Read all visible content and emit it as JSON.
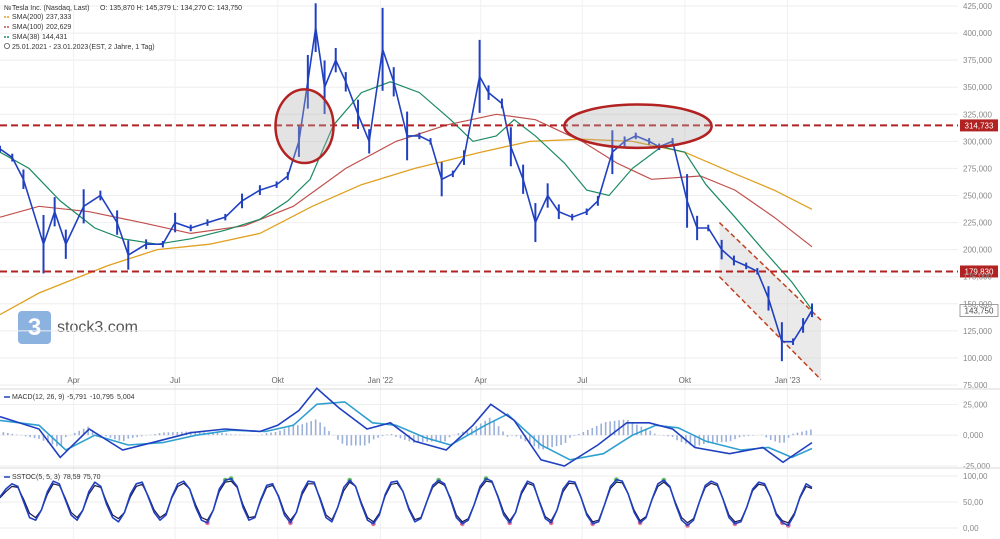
{
  "chart_data": [
    {
      "type": "line",
      "panel": "price",
      "legend": {
        "instrument": "Tesla Inc. (Nasdaq, Last)",
        "ohlc": "O: 135,870  H: 145,379  L: 134,270  C: 143,750",
        "sma200": {
          "label": "SMA(200)",
          "value": "237,333",
          "color": "#e0a020"
        },
        "sma100": {
          "label": "SMA(100)",
          "value": "202,629",
          "color": "#c0504d"
        },
        "sma38": {
          "label": "SMA(38)",
          "value": "144,431",
          "color": "#1a8a60"
        },
        "range": "25.01.2021 - 23.01.2023",
        "range_note": "(EST, 2 Jahre, 1 Tag)"
      },
      "y_axis": {
        "min": 75,
        "max": 425,
        "ticks": [
          75,
          100,
          125,
          150,
          175,
          200,
          225,
          250,
          275,
          300,
          325,
          350,
          375,
          400,
          425
        ],
        "tick_labels": [
          "75,000",
          "100,000",
          "125,000",
          "150,000",
          "175,000",
          "200,000",
          "225,000",
          "250,000",
          "275,000",
          "300,000",
          "325,000",
          "350,000",
          "375,000",
          "400,000",
          "425,000"
        ]
      },
      "x_labels": [
        {
          "label": "Apr",
          "date": "2021-04-01"
        },
        {
          "label": "Jul",
          "date": "2021-07-01"
        },
        {
          "label": "Okt",
          "date": "2021-10-01"
        },
        {
          "label": "Jan '22",
          "date": "2022-01-01"
        },
        {
          "label": "Apr",
          "date": "2022-04-01"
        },
        {
          "label": "Jul",
          "date": "2022-07-01"
        },
        {
          "label": "Okt",
          "date": "2022-10-01"
        },
        {
          "label": "Jan '23",
          "date": "2023-01-01"
        }
      ],
      "price_series": {
        "color": "#2040c0",
        "points": [
          [
            "2021-01-25",
            293
          ],
          [
            "2021-02-05",
            285
          ],
          [
            "2021-02-15",
            265
          ],
          [
            "2021-03-05",
            205
          ],
          [
            "2021-03-15",
            235
          ],
          [
            "2021-03-25",
            205
          ],
          [
            "2021-04-10",
            240
          ],
          [
            "2021-04-25",
            250
          ],
          [
            "2021-05-10",
            225
          ],
          [
            "2021-05-20",
            195
          ],
          [
            "2021-06-05",
            205
          ],
          [
            "2021-06-20",
            205
          ],
          [
            "2021-07-01",
            225
          ],
          [
            "2021-07-15",
            220
          ],
          [
            "2021-07-30",
            225
          ],
          [
            "2021-08-15",
            230
          ],
          [
            "2021-08-30",
            245
          ],
          [
            "2021-09-15",
            255
          ],
          [
            "2021-09-30",
            260
          ],
          [
            "2021-10-10",
            268
          ],
          [
            "2021-10-20",
            300
          ],
          [
            "2021-10-28",
            355
          ],
          [
            "2021-11-04",
            405
          ],
          [
            "2021-11-12",
            350
          ],
          [
            "2021-11-22",
            375
          ],
          [
            "2021-12-01",
            355
          ],
          [
            "2021-12-12",
            325
          ],
          [
            "2021-12-22",
            300
          ],
          [
            "2022-01-03",
            385
          ],
          [
            "2022-01-13",
            355
          ],
          [
            "2022-01-25",
            305
          ],
          [
            "2022-02-05",
            305
          ],
          [
            "2022-02-15",
            300
          ],
          [
            "2022-02-25",
            265
          ],
          [
            "2022-03-07",
            270
          ],
          [
            "2022-03-17",
            285
          ],
          [
            "2022-03-31",
            360
          ],
          [
            "2022-04-08",
            345
          ],
          [
            "2022-04-20",
            335
          ],
          [
            "2022-04-28",
            295
          ],
          [
            "2022-05-09",
            265
          ],
          [
            "2022-05-20",
            225
          ],
          [
            "2022-05-31",
            250
          ],
          [
            "2022-06-10",
            235
          ],
          [
            "2022-06-22",
            230
          ],
          [
            "2022-07-05",
            235
          ],
          [
            "2022-07-15",
            245
          ],
          [
            "2022-07-28",
            290
          ],
          [
            "2022-08-08",
            300
          ],
          [
            "2022-08-18",
            305
          ],
          [
            "2022-08-30",
            300
          ],
          [
            "2022-09-08",
            295
          ],
          [
            "2022-09-20",
            300
          ],
          [
            "2022-10-03",
            245
          ],
          [
            "2022-10-12",
            220
          ],
          [
            "2022-10-22",
            220
          ],
          [
            "2022-11-03",
            200
          ],
          [
            "2022-11-14",
            190
          ],
          [
            "2022-11-25",
            185
          ],
          [
            "2022-12-05",
            180
          ],
          [
            "2022-12-15",
            155
          ],
          [
            "2022-12-27",
            115
          ],
          [
            "2023-01-06",
            115
          ],
          [
            "2023-01-15",
            130
          ],
          [
            "2023-01-23",
            144
          ]
        ]
      },
      "sma38_points": [
        [
          "2021-01-25",
          290
        ],
        [
          "2021-02-20",
          275
        ],
        [
          "2021-03-20",
          245
        ],
        [
          "2021-04-20",
          220
        ],
        [
          "2021-05-15",
          210
        ],
        [
          "2021-06-15",
          205
        ],
        [
          "2021-07-15",
          210
        ],
        [
          "2021-08-15",
          218
        ],
        [
          "2021-09-15",
          228
        ],
        [
          "2021-10-10",
          245
        ],
        [
          "2021-10-30",
          265
        ],
        [
          "2021-11-20",
          315
        ],
        [
          "2021-12-15",
          345
        ],
        [
          "2022-01-10",
          355
        ],
        [
          "2022-02-05",
          345
        ],
        [
          "2022-03-05",
          320
        ],
        [
          "2022-03-25",
          300
        ],
        [
          "2022-04-15",
          305
        ],
        [
          "2022-05-01",
          320
        ],
        [
          "2022-05-20",
          305
        ],
        [
          "2022-06-15",
          280
        ],
        [
          "2022-07-05",
          255
        ],
        [
          "2022-07-25",
          250
        ],
        [
          "2022-08-15",
          275
        ],
        [
          "2022-09-10",
          295
        ],
        [
          "2022-10-01",
          290
        ],
        [
          "2022-10-20",
          260
        ],
        [
          "2022-11-15",
          230
        ],
        [
          "2022-12-10",
          200
        ],
        [
          "2023-01-05",
          170
        ],
        [
          "2023-01-23",
          144.4
        ]
      ],
      "sma100_points": [
        [
          "2021-01-25",
          230
        ],
        [
          "2021-03-01",
          240
        ],
        [
          "2021-04-15",
          235
        ],
        [
          "2021-06-01",
          225
        ],
        [
          "2021-07-15",
          215
        ],
        [
          "2021-09-01",
          222
        ],
        [
          "2021-10-15",
          240
        ],
        [
          "2021-12-01",
          275
        ],
        [
          "2022-01-15",
          300
        ],
        [
          "2022-03-01",
          315
        ],
        [
          "2022-04-15",
          325
        ],
        [
          "2022-05-20",
          320
        ],
        [
          "2022-07-01",
          300
        ],
        [
          "2022-08-01",
          280
        ],
        [
          "2022-09-01",
          265
        ],
        [
          "2022-10-15",
          268
        ],
        [
          "2022-11-15",
          255
        ],
        [
          "2022-12-20",
          230
        ],
        [
          "2023-01-23",
          202.6
        ]
      ],
      "sma200_points": [
        [
          "2021-01-25",
          140
        ],
        [
          "2021-03-01",
          160
        ],
        [
          "2021-05-01",
          185
        ],
        [
          "2021-06-15",
          200
        ],
        [
          "2021-08-01",
          205
        ],
        [
          "2021-09-15",
          215
        ],
        [
          "2021-11-01",
          240
        ],
        [
          "2021-12-15",
          260
        ],
        [
          "2022-02-01",
          275
        ],
        [
          "2022-04-01",
          290
        ],
        [
          "2022-05-15",
          300
        ],
        [
          "2022-07-01",
          302
        ],
        [
          "2022-08-15",
          300
        ],
        [
          "2022-10-01",
          290
        ],
        [
          "2022-11-15",
          270
        ],
        [
          "2022-12-20",
          255
        ],
        [
          "2023-01-23",
          237.3
        ]
      ],
      "horizontal_lines": [
        {
          "value": 314.733,
          "label": "314,733",
          "color": "#b22222"
        },
        {
          "value": 179.83,
          "label": "179,830",
          "color": "#b22222"
        }
      ],
      "last_price": {
        "value": 143.75,
        "label": "143,750",
        "color": "#444444"
      },
      "channel": {
        "upper": [
          [
            "2022-11-01",
            225
          ],
          [
            "2023-01-31",
            135
          ]
        ],
        "lower": [
          [
            "2022-11-01",
            175
          ],
          [
            "2023-01-31",
            80
          ]
        ],
        "color": "#c04020"
      },
      "ellipses": [
        {
          "center_date": "2021-10-25",
          "center_value": 314,
          "width_days": 52,
          "height_value": 68,
          "color": "#b22222"
        },
        {
          "center_date": "2022-08-20",
          "center_value": 314,
          "width_days": 132,
          "height_value": 40,
          "color": "#b22222"
        }
      ],
      "watermark": {
        "text": "stock3.com",
        "badge": "3"
      }
    },
    {
      "type": "line",
      "panel": "macd",
      "legend": {
        "label": "MACD(12, 26, 9)",
        "v1": "-5,791",
        "v2": "-10,795",
        "v3": "5,004"
      },
      "y_axis": {
        "min": -25,
        "max": 35,
        "ticks": [
          -25,
          0,
          25
        ],
        "tick_labels": [
          "-25,000",
          "0,000",
          "25,000"
        ]
      },
      "macd_points": [
        [
          "2021-01-25",
          15
        ],
        [
          "2021-03-01",
          5
        ],
        [
          "2021-03-20",
          -18
        ],
        [
          "2021-04-15",
          5
        ],
        [
          "2021-05-15",
          -12
        ],
        [
          "2021-06-15",
          -5
        ],
        [
          "2021-07-15",
          2
        ],
        [
          "2021-08-15",
          5
        ],
        [
          "2021-09-15",
          3
        ],
        [
          "2021-10-01",
          8
        ],
        [
          "2021-10-20",
          20
        ],
        [
          "2021-11-05",
          38
        ],
        [
          "2021-11-25",
          22
        ],
        [
          "2021-12-20",
          5
        ],
        [
          "2022-01-10",
          10
        ],
        [
          "2022-02-01",
          -5
        ],
        [
          "2022-03-01",
          -12
        ],
        [
          "2022-03-25",
          8
        ],
        [
          "2022-04-10",
          25
        ],
        [
          "2022-05-01",
          12
        ],
        [
          "2022-05-25",
          -20
        ],
        [
          "2022-06-15",
          -25
        ],
        [
          "2022-07-15",
          -8
        ],
        [
          "2022-08-10",
          10
        ],
        [
          "2022-08-30",
          10
        ],
        [
          "2022-09-20",
          5
        ],
        [
          "2022-10-10",
          -10
        ],
        [
          "2022-11-10",
          -15
        ],
        [
          "2022-12-10",
          -10
        ],
        [
          "2022-12-28",
          -22
        ],
        [
          "2023-01-23",
          -6
        ]
      ],
      "signal_points": [
        [
          "2021-01-25",
          12
        ],
        [
          "2021-03-01",
          8
        ],
        [
          "2021-03-25",
          -12
        ],
        [
          "2021-04-20",
          0
        ],
        [
          "2021-05-20",
          -8
        ],
        [
          "2021-06-20",
          -6
        ],
        [
          "2021-07-20",
          0
        ],
        [
          "2021-08-20",
          4
        ],
        [
          "2021-09-20",
          3
        ],
        [
          "2021-10-15",
          8
        ],
        [
          "2021-11-05",
          25
        ],
        [
          "2021-11-30",
          27
        ],
        [
          "2021-12-25",
          10
        ],
        [
          "2022-01-15",
          8
        ],
        [
          "2022-02-10",
          -2
        ],
        [
          "2022-03-05",
          -8
        ],
        [
          "2022-04-05",
          8
        ],
        [
          "2022-04-25",
          17
        ],
        [
          "2022-05-25",
          -8
        ],
        [
          "2022-06-20",
          -20
        ],
        [
          "2022-07-20",
          -15
        ],
        [
          "2022-08-15",
          0
        ],
        [
          "2022-09-05",
          8
        ],
        [
          "2022-09-25",
          6
        ],
        [
          "2022-10-20",
          -5
        ],
        [
          "2022-11-20",
          -12
        ],
        [
          "2022-12-15",
          -10
        ],
        [
          "2023-01-05",
          -18
        ],
        [
          "2023-01-23",
          -10.8
        ]
      ],
      "macd_color": "#2040c0",
      "signal_color": "#30a0d0"
    },
    {
      "type": "line",
      "panel": "stoch",
      "legend": {
        "label": "SSTOC(5, 5, 3)",
        "v1": "78,59",
        "v2": "75,70"
      },
      "y_axis": {
        "min": 0,
        "max": 100,
        "ticks": [
          0,
          50,
          100
        ],
        "tick_labels": [
          "0,00",
          "50,00",
          "100,00"
        ]
      },
      "k_series": [
        60,
        75,
        85,
        80,
        50,
        20,
        15,
        35,
        70,
        90,
        85,
        55,
        25,
        15,
        35,
        70,
        88,
        80,
        45,
        20,
        12,
        30,
        65,
        85,
        88,
        60,
        30,
        15,
        25,
        60,
        85,
        90,
        75,
        40,
        15,
        10,
        35,
        75,
        92,
        95,
        80,
        40,
        15,
        20,
        55,
        82,
        85,
        60,
        25,
        10,
        30,
        70,
        90,
        88,
        55,
        20,
        12,
        40,
        78,
        92,
        80,
        45,
        15,
        8,
        25,
        65,
        88,
        90,
        70,
        35,
        12,
        18,
        50,
        82,
        92,
        85,
        55,
        20,
        8,
        15,
        45,
        80,
        95,
        90,
        60,
        25,
        10,
        30,
        70,
        90,
        85,
        50,
        18,
        10,
        35,
        75,
        90,
        88,
        60,
        25,
        8,
        12,
        45,
        80,
        93,
        90,
        65,
        30,
        10,
        20,
        55,
        85,
        92,
        80,
        45,
        15,
        5,
        15,
        50,
        82,
        90,
        85,
        55,
        20,
        8,
        12,
        40,
        75,
        88,
        85,
        60,
        25,
        10,
        5,
        25,
        60,
        85,
        78
      ],
      "d_series": [
        58,
        70,
        80,
        78,
        55,
        28,
        20,
        35,
        65,
        85,
        82,
        58,
        30,
        20,
        35,
        65,
        82,
        78,
        50,
        25,
        18,
        30,
        60,
        80,
        84,
        62,
        35,
        20,
        28,
        58,
        80,
        86,
        75,
        45,
        20,
        15,
        35,
        70,
        88,
        90,
        78,
        45,
        20,
        22,
        52,
        78,
        82,
        62,
        30,
        15,
        30,
        65,
        85,
        85,
        58,
        25,
        16,
        40,
        72,
        88,
        80,
        48,
        20,
        12,
        28,
        62,
        84,
        86,
        70,
        38,
        16,
        20,
        50,
        78,
        88,
        82,
        58,
        25,
        12,
        18,
        45,
        76,
        90,
        88,
        62,
        30,
        14,
        30,
        66,
        86,
        82,
        52,
        22,
        14,
        35,
        70,
        86,
        85,
        60,
        28,
        12,
        15,
        45,
        76,
        88,
        87,
        65,
        34,
        14,
        22,
        54,
        80,
        88,
        78,
        48,
        20,
        10,
        18,
        50,
        78,
        86,
        82,
        56,
        25,
        12,
        15,
        40,
        72,
        84,
        82,
        60,
        28,
        14,
        10,
        28,
        58,
        80,
        76
      ],
      "k_color": "#2040c0",
      "d_color": "#1a1a50",
      "oversold_fill": "#e05080",
      "overbought_fill": "#40b040"
    }
  ]
}
